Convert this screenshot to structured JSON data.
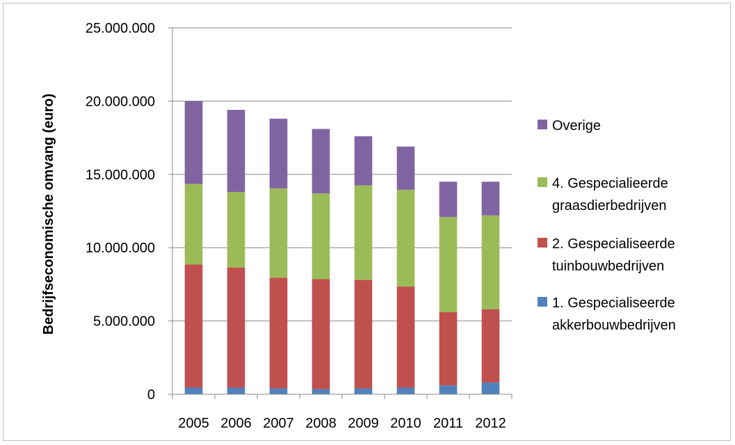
{
  "chart_data": {
    "type": "bar",
    "stacked": true,
    "title": "",
    "xlabel": "",
    "ylabel": "Bedrijfseconomische omvang (euro)",
    "ylim": [
      0,
      25000000
    ],
    "yticks": [
      "0",
      "5.000.000",
      "10.000.000",
      "15.000.000",
      "20.000.000",
      "25.000.000"
    ],
    "ytick_values": [
      0,
      5000000,
      10000000,
      15000000,
      20000000,
      25000000
    ],
    "grid": true,
    "legend_position": "right",
    "categories": [
      "2005",
      "2006",
      "2007",
      "2008",
      "2009",
      "2010",
      "2011",
      "2012"
    ],
    "series": [
      {
        "name": "1. Gespecialiseerde akkerbouwbedrijven",
        "legend_lines": [
          "1. Gespecialiseerde",
          "akkerbouwbedrijven"
        ],
        "color": "#4F81BD",
        "values": [
          450000,
          450000,
          400000,
          350000,
          400000,
          450000,
          600000,
          800000
        ]
      },
      {
        "name": "2. Gespecialiseerde tuinbouwbedrijven",
        "legend_lines": [
          "2. Gespecialiseerde",
          "tuinbouwbedrijven"
        ],
        "color": "#C0504D",
        "values": [
          8400000,
          8200000,
          7550000,
          7500000,
          7400000,
          6900000,
          5000000,
          5000000
        ]
      },
      {
        "name": "4. Gespecialieerde graasdierbedrijven",
        "legend_lines": [
          "4. Gespecialieerde",
          "graasdierbedrijven"
        ],
        "color": "#9BBB59",
        "values": [
          5500000,
          5150000,
          6100000,
          5850000,
          6450000,
          6600000,
          6500000,
          6400000
        ]
      },
      {
        "name": "Overige",
        "legend_lines": [
          "Overige"
        ],
        "color": "#8064A2",
        "values": [
          5650000,
          5600000,
          4750000,
          4400000,
          3350000,
          2950000,
          2400000,
          2300000
        ]
      }
    ]
  }
}
